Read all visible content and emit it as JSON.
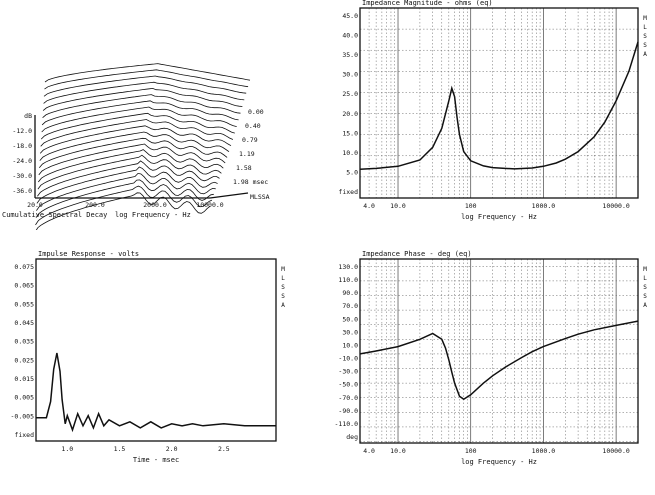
{
  "chart_data": [
    {
      "id": "csd",
      "type": "area",
      "title": "Cumulative Spectral Decay",
      "xlabel": "log Frequency - Hz",
      "x_ticks": [
        "20.0",
        "200.0",
        "2000.0",
        "10000.0"
      ],
      "y_ticks": [
        "dB",
        "-12.0",
        "-18.0",
        "-24.0",
        "-30.0",
        "-36.0"
      ],
      "z_ticks": [
        "0.00",
        "0.40",
        "0.79",
        "1.19",
        "1.58",
        "1.98 msec"
      ],
      "legend": "MLSSA"
    },
    {
      "id": "imp_mag",
      "type": "line",
      "title": "Impedance Magnitude - ohms (eq)",
      "xlabel": "log Frequency - Hz",
      "xscale": "log",
      "xlim": [
        3.0,
        20000.0
      ],
      "ylim": [
        0.0,
        45.0
      ],
      "x_ticks": [
        "4.0",
        "10.0",
        "100",
        "1000.0",
        "10000.0"
      ],
      "y_ticks": [
        "45.0",
        "40.0",
        "35.0",
        "30.0",
        "25.0",
        "20.0",
        "15.0",
        "10.0",
        "5.0",
        "fixed"
      ],
      "side_label": [
        "M",
        "L",
        "S",
        "S",
        "A"
      ],
      "x": [
        3.0,
        5,
        10,
        20,
        30,
        40,
        50,
        55,
        60,
        65,
        70,
        80,
        100,
        150,
        200,
        400,
        700,
        1000,
        1500,
        2000,
        3000,
        5000,
        7000,
        10000,
        15000,
        20000
      ],
      "y": [
        6.8,
        7.0,
        7.5,
        9.0,
        12.0,
        16.5,
        23.0,
        26.0,
        24.0,
        19.0,
        15.0,
        11.0,
        8.8,
        7.6,
        7.2,
        6.9,
        7.1,
        7.5,
        8.3,
        9.2,
        11.0,
        14.5,
        18.0,
        23.0,
        30.0,
        37.0
      ],
      "grid": true
    },
    {
      "id": "impulse",
      "type": "line",
      "title": "Impulse Response - volts",
      "xlabel": "Time - msec",
      "xlim": [
        0.7,
        3.0
      ],
      "ylim": [
        -0.0075,
        0.0825
      ],
      "x_ticks": [
        "1.0",
        "1.5",
        "2.0",
        "2.5"
      ],
      "y_ticks": [
        "0.075",
        "0.065",
        "0.055",
        "0.045",
        "0.035",
        "0.025",
        "0.015",
        "0.005",
        "-0.005",
        "fixed"
      ],
      "side_label": [
        "M",
        "L",
        "S",
        "S",
        "A"
      ],
      "x": [
        0.7,
        0.8,
        0.84,
        0.87,
        0.9,
        0.93,
        0.95,
        0.98,
        1.0,
        1.05,
        1.1,
        1.15,
        1.2,
        1.25,
        1.3,
        1.35,
        1.4,
        1.5,
        1.6,
        1.7,
        1.8,
        1.9,
        2.0,
        2.1,
        2.2,
        2.3,
        2.5,
        2.7,
        3.0
      ],
      "y": [
        0.004,
        0.004,
        0.012,
        0.028,
        0.036,
        0.027,
        0.013,
        0.001,
        0.005,
        -0.002,
        0.006,
        0.0,
        0.005,
        -0.001,
        0.006,
        0.0,
        0.003,
        0.0,
        0.002,
        -0.001,
        0.002,
        -0.001,
        0.001,
        0.0,
        0.001,
        0.0,
        0.001,
        0.0,
        0.0
      ],
      "grid": false
    },
    {
      "id": "imp_phase",
      "type": "line",
      "title": "Impedance Phase - deg (eq)",
      "xlabel": "log Frequency - Hz",
      "xscale": "log",
      "xlim": [
        3.0,
        20000.0
      ],
      "ylim": [
        -112.0,
        140.0
      ],
      "x_ticks": [
        "4.0",
        "10.0",
        "100",
        "1000.0",
        "10000.0"
      ],
      "y_ticks": [
        "130.0",
        "110.0",
        "90.0",
        "70.0",
        "50.0",
        "30.0",
        "10.0",
        "-10.0",
        "-30.0",
        "-50.0",
        "-70.0",
        "-90.0",
        "-110.0",
        "deg"
      ],
      "side_label": [
        "M",
        "L",
        "S",
        "S",
        "A"
      ],
      "x": [
        3.0,
        5,
        10,
        20,
        30,
        40,
        45,
        50,
        55,
        60,
        70,
        80,
        100,
        150,
        200,
        300,
        500,
        700,
        1000,
        2000,
        3000,
        5000,
        10000,
        20000
      ],
      "y": [
        10,
        14,
        20,
        30,
        38,
        30,
        18,
        2,
        -15,
        -30,
        -48,
        -52,
        -46,
        -30,
        -20,
        -8,
        5,
        13,
        20,
        31,
        37,
        43,
        49,
        55
      ],
      "grid": true
    }
  ]
}
